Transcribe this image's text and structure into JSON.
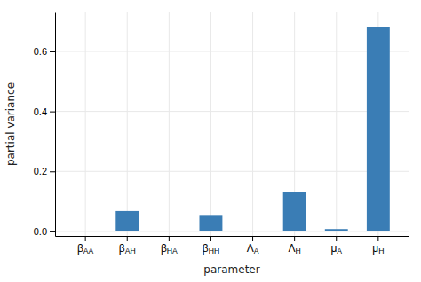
{
  "chart_data": {
    "type": "bar",
    "xlabel": "parameter",
    "ylabel": "partial variance",
    "categories": [
      "βAA",
      "βAH",
      "βHA",
      "βHH",
      "ΛA",
      "ΛH",
      "μA",
      "μH"
    ],
    "values": [
      0.0,
      0.068,
      0.0,
      0.052,
      0.0,
      0.13,
      0.008,
      0.68
    ],
    "color": "#3a7db5",
    "ylim": [
      -0.015,
      0.73
    ],
    "yticks": [
      {
        "value": 0.0,
        "label": "0.0"
      },
      0.2,
      0.4,
      0.6
    ],
    "grid": true
  }
}
